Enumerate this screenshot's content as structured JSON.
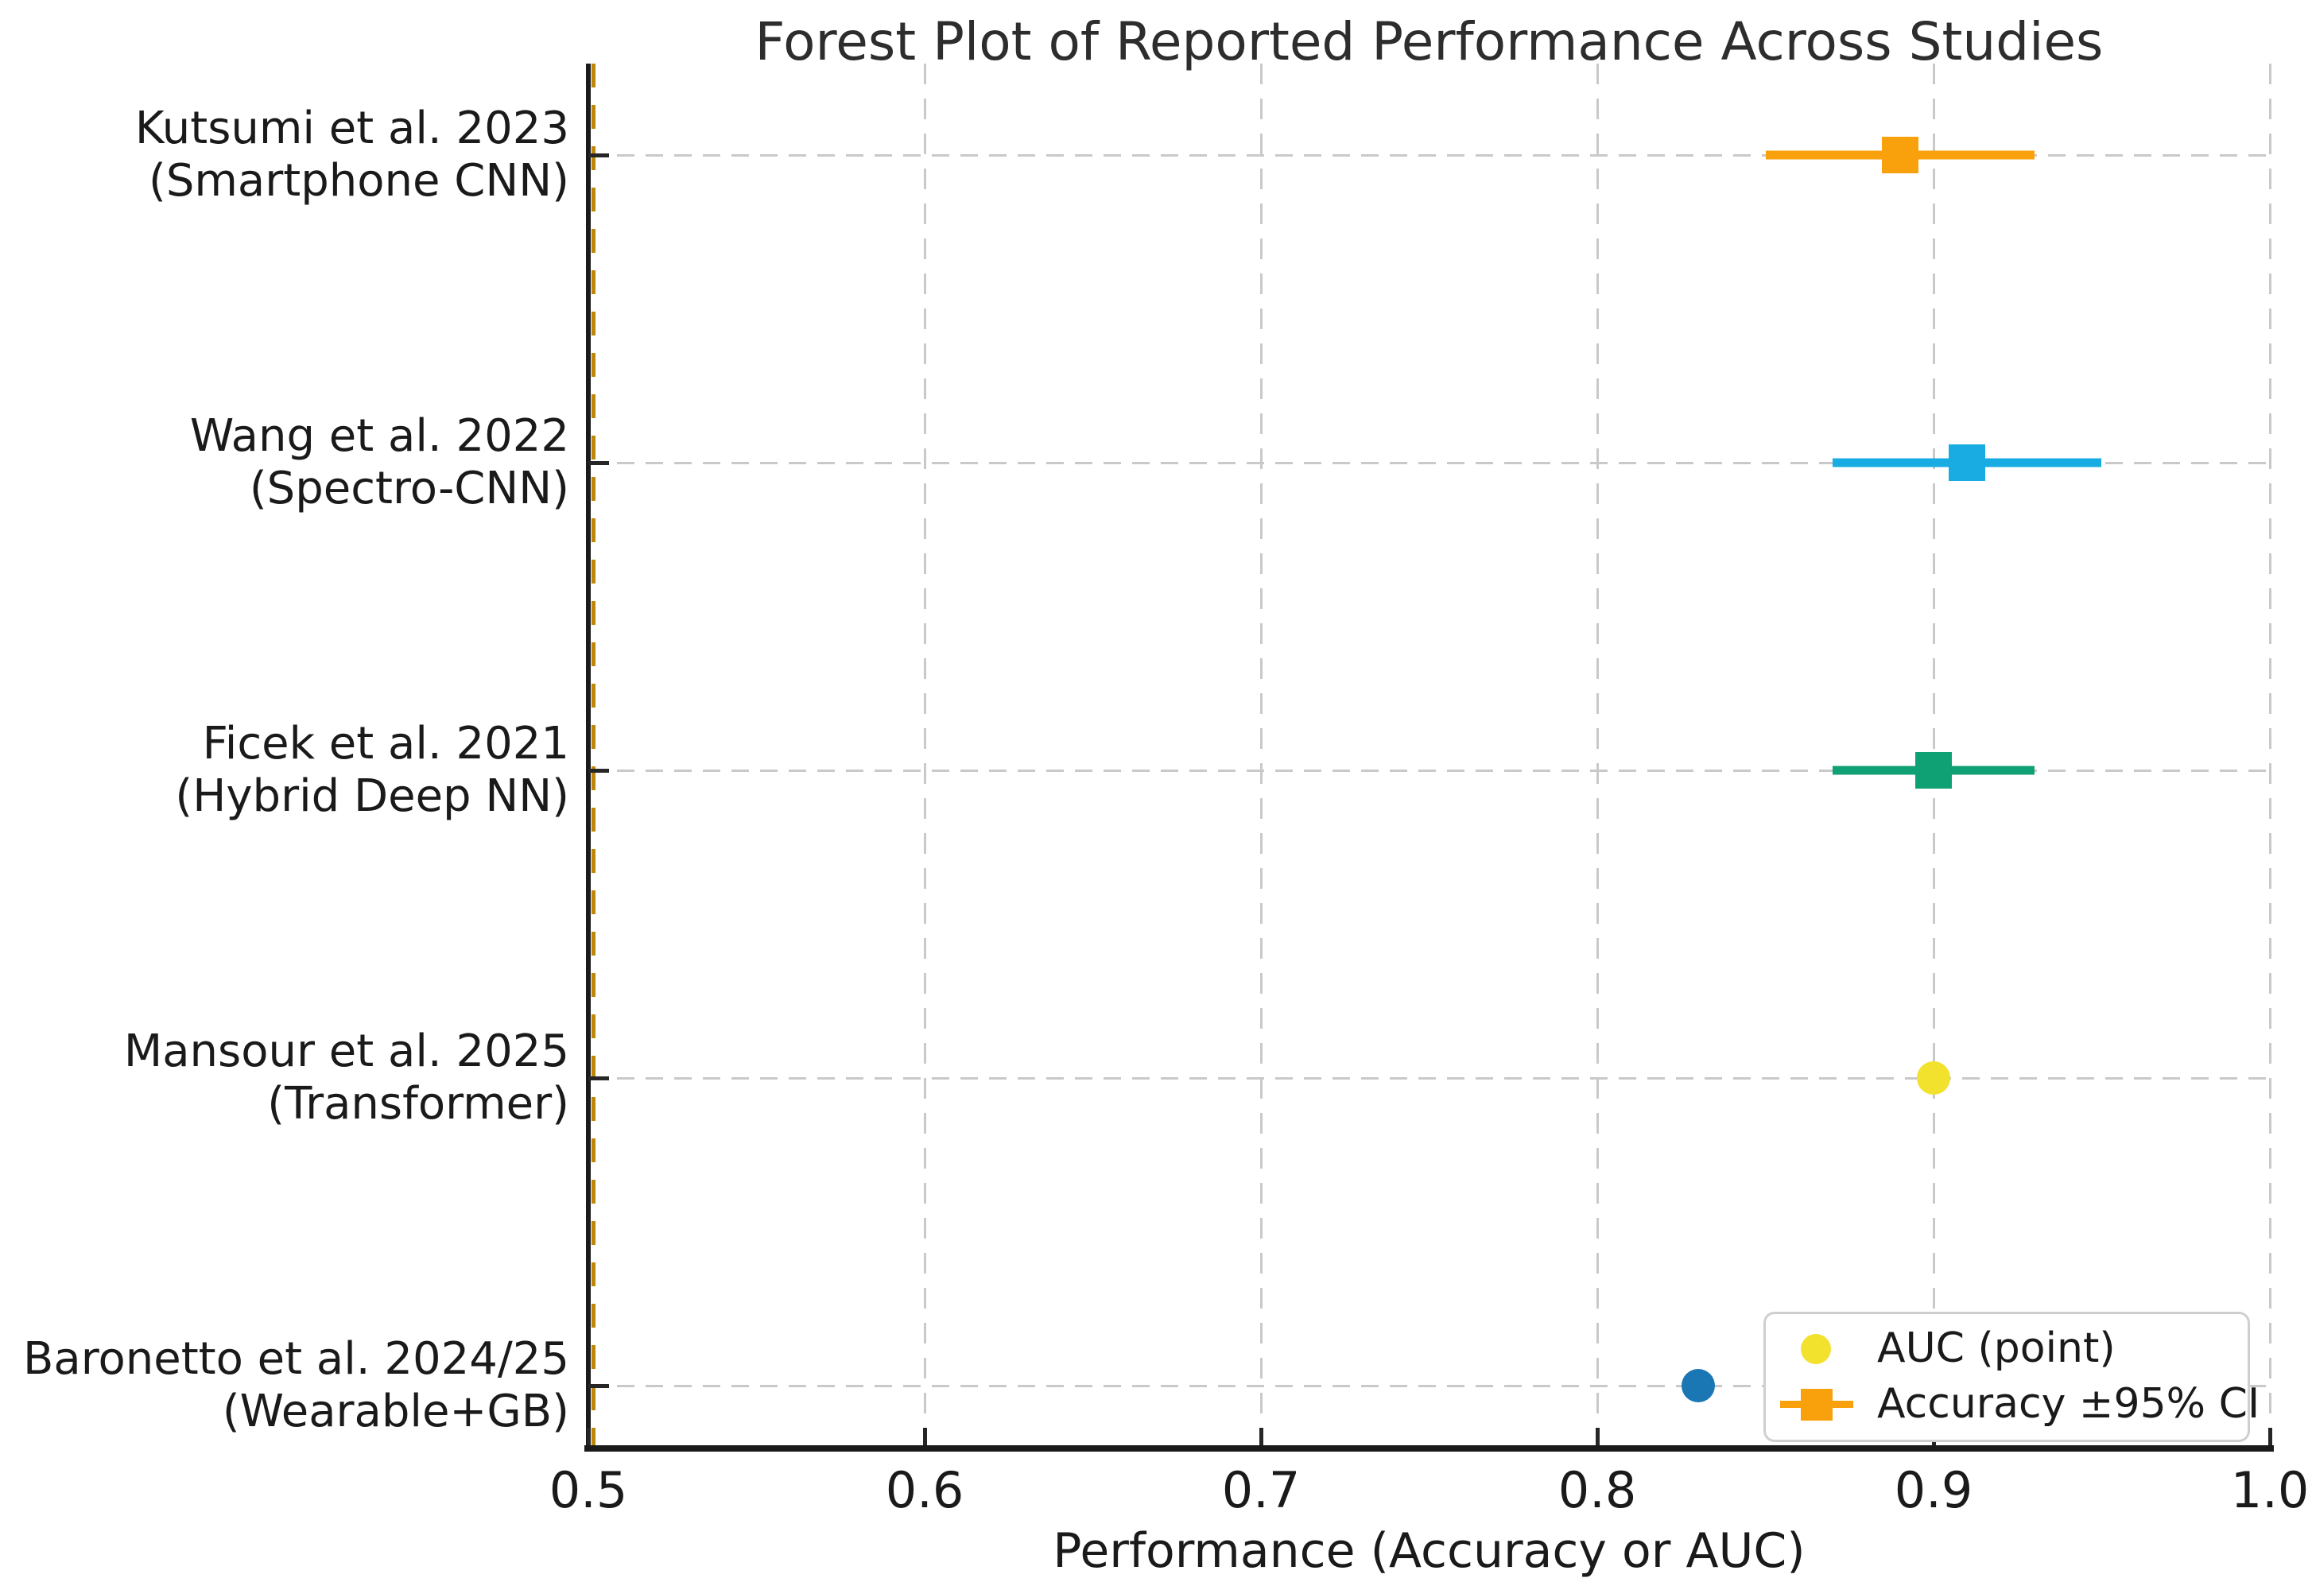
{
  "title": "Forest Plot of Reported Performance Across Studies",
  "xaxis": {
    "label": "Performance (Accuracy or AUC)",
    "tick_labels": [
      "0.5",
      "0.6",
      "0.7",
      "0.8",
      "0.9",
      "1.0"
    ]
  },
  "chart_data": {
    "type": "scatter",
    "title": "Forest Plot of Reported Performance Across Studies",
    "xlabel": "Performance (Accuracy or AUC)",
    "ylabel": "",
    "xlim": [
      0.5,
      1.0
    ],
    "x_ticks": [
      0.5,
      0.6,
      0.7,
      0.8,
      0.9,
      1.0
    ],
    "grid": "dashed-gray",
    "reference_line": {
      "x": 0.5,
      "color": "#be860b",
      "style": "dashed"
    },
    "legend_position": "lower right",
    "studies": [
      {
        "label_line1": "Kutsumi et al. 2023",
        "label_line2": "(Smartphone CNN)",
        "metric": "Accuracy ±95% CI",
        "marker": "square",
        "value": 0.89,
        "ci_low": 0.85,
        "ci_high": 0.93,
        "color": "#f9a10d"
      },
      {
        "label_line1": "Wang et al. 2022",
        "label_line2": "(Spectro-CNN)",
        "metric": "Accuracy ±95% CI",
        "marker": "square",
        "value": 0.91,
        "ci_low": 0.87,
        "ci_high": 0.95,
        "color": "#18ace3"
      },
      {
        "label_line1": "Ficek et al. 2021",
        "label_line2": "(Hybrid Deep NN)",
        "metric": "Accuracy ±95% CI",
        "marker": "square",
        "value": 0.9,
        "ci_low": 0.87,
        "ci_high": 0.93,
        "color": "#0fa173"
      },
      {
        "label_line1": "Mansour et al. 2025",
        "label_line2": "(Transformer)",
        "metric": "AUC (point)",
        "marker": "circle",
        "value": 0.9,
        "ci_low": null,
        "ci_high": null,
        "color": "#f2e12d"
      },
      {
        "label_line1": "Baronetto et al. 2024/25",
        "label_line2": "(Wearable+GB)",
        "metric": "AUC (point)",
        "marker": "circle",
        "value": 0.83,
        "ci_low": null,
        "ci_high": null,
        "color": "#1b77b4"
      }
    ],
    "legend": {
      "items": [
        {
          "label": "AUC (point)",
          "marker": "circle",
          "color": "#f2e12d"
        },
        {
          "label": "Accuracy ±95% CI",
          "marker": "square_with_ci",
          "color": "#f9a10d"
        }
      ]
    }
  },
  "style_colors": {
    "grid": "#c9c9c9",
    "axis": "#1a1a1a",
    "reference_gold": "#be860b",
    "legend_border": "#cfcfcf"
  }
}
